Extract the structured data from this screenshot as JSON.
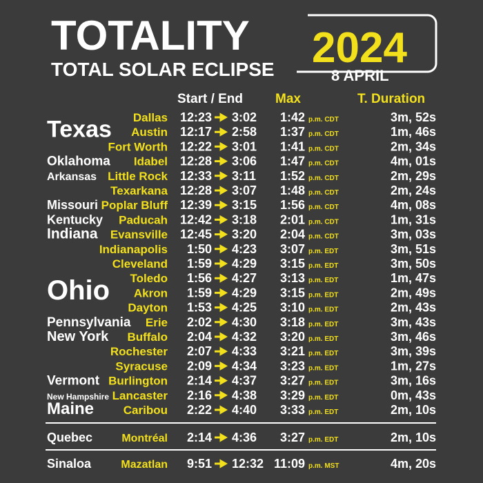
{
  "header": {
    "title": "TOTALITY",
    "year": "2024",
    "subtitle": "TOTAL SOLAR ECLIPSE",
    "date": "8 APRIL"
  },
  "columns": {
    "times": "Start / End",
    "max": "Max",
    "duration": "T. Duration"
  },
  "groups": [
    {
      "state": "Texas",
      "rows": [
        {
          "city": "Dallas",
          "start": "12:23",
          "end": "3:02",
          "max": "1:42",
          "zone": "p.m. CDT",
          "duration": "3m, 52s"
        },
        {
          "city": "Austin",
          "start": "12:17",
          "end": "2:58",
          "max": "1:37",
          "zone": "p.m. CDT",
          "duration": "1m, 46s"
        },
        {
          "city": "Fort Worth",
          "start": "12:22",
          "end": "3:01",
          "max": "1:41",
          "zone": "p.m. CDT",
          "duration": "2m, 34s"
        }
      ]
    },
    {
      "state": "Oklahoma",
      "rows": [
        {
          "city": "Idabel",
          "start": "12:28",
          "end": "3:06",
          "max": "1:47",
          "zone": "p.m. CDT",
          "duration": "4m, 01s"
        }
      ]
    },
    {
      "state": "Arkansas",
      "rows": [
        {
          "city": "Little Rock",
          "start": "12:33",
          "end": "3:11",
          "max": "1:52",
          "zone": "p.m. CDT",
          "duration": "2m, 29s"
        },
        {
          "city": "Texarkana",
          "start": "12:28",
          "end": "3:07",
          "max": "1:48",
          "zone": "p.m. CDT",
          "duration": "2m, 24s"
        }
      ]
    },
    {
      "state": "Missouri",
      "rows": [
        {
          "city": "Poplar Bluff",
          "start": "12:39",
          "end": "3:15",
          "max": "1:56",
          "zone": "p.m. CDT",
          "duration": "4m, 08s"
        }
      ]
    },
    {
      "state": "Kentucky",
      "rows": [
        {
          "city": "Paducah",
          "start": "12:42",
          "end": "3:18",
          "max": "2:01",
          "zone": "p.m. CDT",
          "duration": "1m, 31s"
        }
      ]
    },
    {
      "state": "Indiana",
      "rows": [
        {
          "city": "Evansville",
          "start": "12:45",
          "end": "3:20",
          "max": "2:04",
          "zone": "p.m. CDT",
          "duration": "3m, 03s"
        },
        {
          "city": "Indianapolis",
          "start": "1:50",
          "end": "4:23",
          "max": "3:07",
          "zone": "p.m. EDT",
          "duration": "3m, 51s"
        }
      ]
    },
    {
      "state": "Ohio",
      "rows": [
        {
          "city": "Cleveland",
          "start": "1:59",
          "end": "4:29",
          "max": "3:15",
          "zone": "p.m. EDT",
          "duration": "3m, 50s"
        },
        {
          "city": "Toledo",
          "start": "1:56",
          "end": "4:27",
          "max": "3:13",
          "zone": "p.m. EDT",
          "duration": "1m, 47s"
        },
        {
          "city": "Akron",
          "start": "1:59",
          "end": "4:29",
          "max": "3:15",
          "zone": "p.m. EDT",
          "duration": "2m, 49s"
        },
        {
          "city": "Dayton",
          "start": "1:53",
          "end": "4:25",
          "max": "3:10",
          "zone": "p.m. EDT",
          "duration": "2m, 43s"
        }
      ]
    },
    {
      "state": "Pennsylvania",
      "rows": [
        {
          "city": "Erie",
          "start": "2:02",
          "end": "4:30",
          "max": "3:18",
          "zone": "p.m. EDT",
          "duration": "3m, 43s"
        }
      ]
    },
    {
      "state": "New York",
      "rows": [
        {
          "city": "Buffalo",
          "start": "2:04",
          "end": "4:32",
          "max": "3:20",
          "zone": "p.m. EDT",
          "duration": "3m, 46s"
        },
        {
          "city": "Rochester",
          "start": "2:07",
          "end": "4:33",
          "max": "3:21",
          "zone": "p.m. EDT",
          "duration": "3m, 39s"
        },
        {
          "city": "Syracuse",
          "start": "2:09",
          "end": "4:34",
          "max": "3:23",
          "zone": "p.m. EDT",
          "duration": "1m, 27s"
        }
      ]
    },
    {
      "state": "Vermont",
      "rows": [
        {
          "city": "Burlington",
          "start": "2:14",
          "end": "4:37",
          "max": "3:27",
          "zone": "p.m. EDT",
          "duration": "3m, 16s"
        }
      ]
    },
    {
      "state": "New Hampshire",
      "rows": [
        {
          "city": "Lancaster",
          "start": "2:16",
          "end": "4:38",
          "max": "3:29",
          "zone": "p.m. EDT",
          "duration": "0m, 43s"
        }
      ]
    },
    {
      "state": "Maine",
      "rows": [
        {
          "city": "Caribou",
          "start": "2:22",
          "end": "4:40",
          "max": "3:33",
          "zone": "p.m. EDT",
          "duration": "2m, 10s"
        }
      ]
    },
    {
      "state": "Quebec",
      "rows": [
        {
          "city": "Montréal",
          "start": "2:14",
          "end": "4:36",
          "max": "3:27",
          "zone": "p.m. EDT",
          "duration": "2m, 10s"
        }
      ]
    },
    {
      "state": "Sinaloa",
      "rows": [
        {
          "city": "Mazatlan",
          "start": "9:51",
          "end": "12:32",
          "max": "11:09",
          "zone": "p.m. MST",
          "duration": "4m, 20s"
        }
      ]
    }
  ]
}
